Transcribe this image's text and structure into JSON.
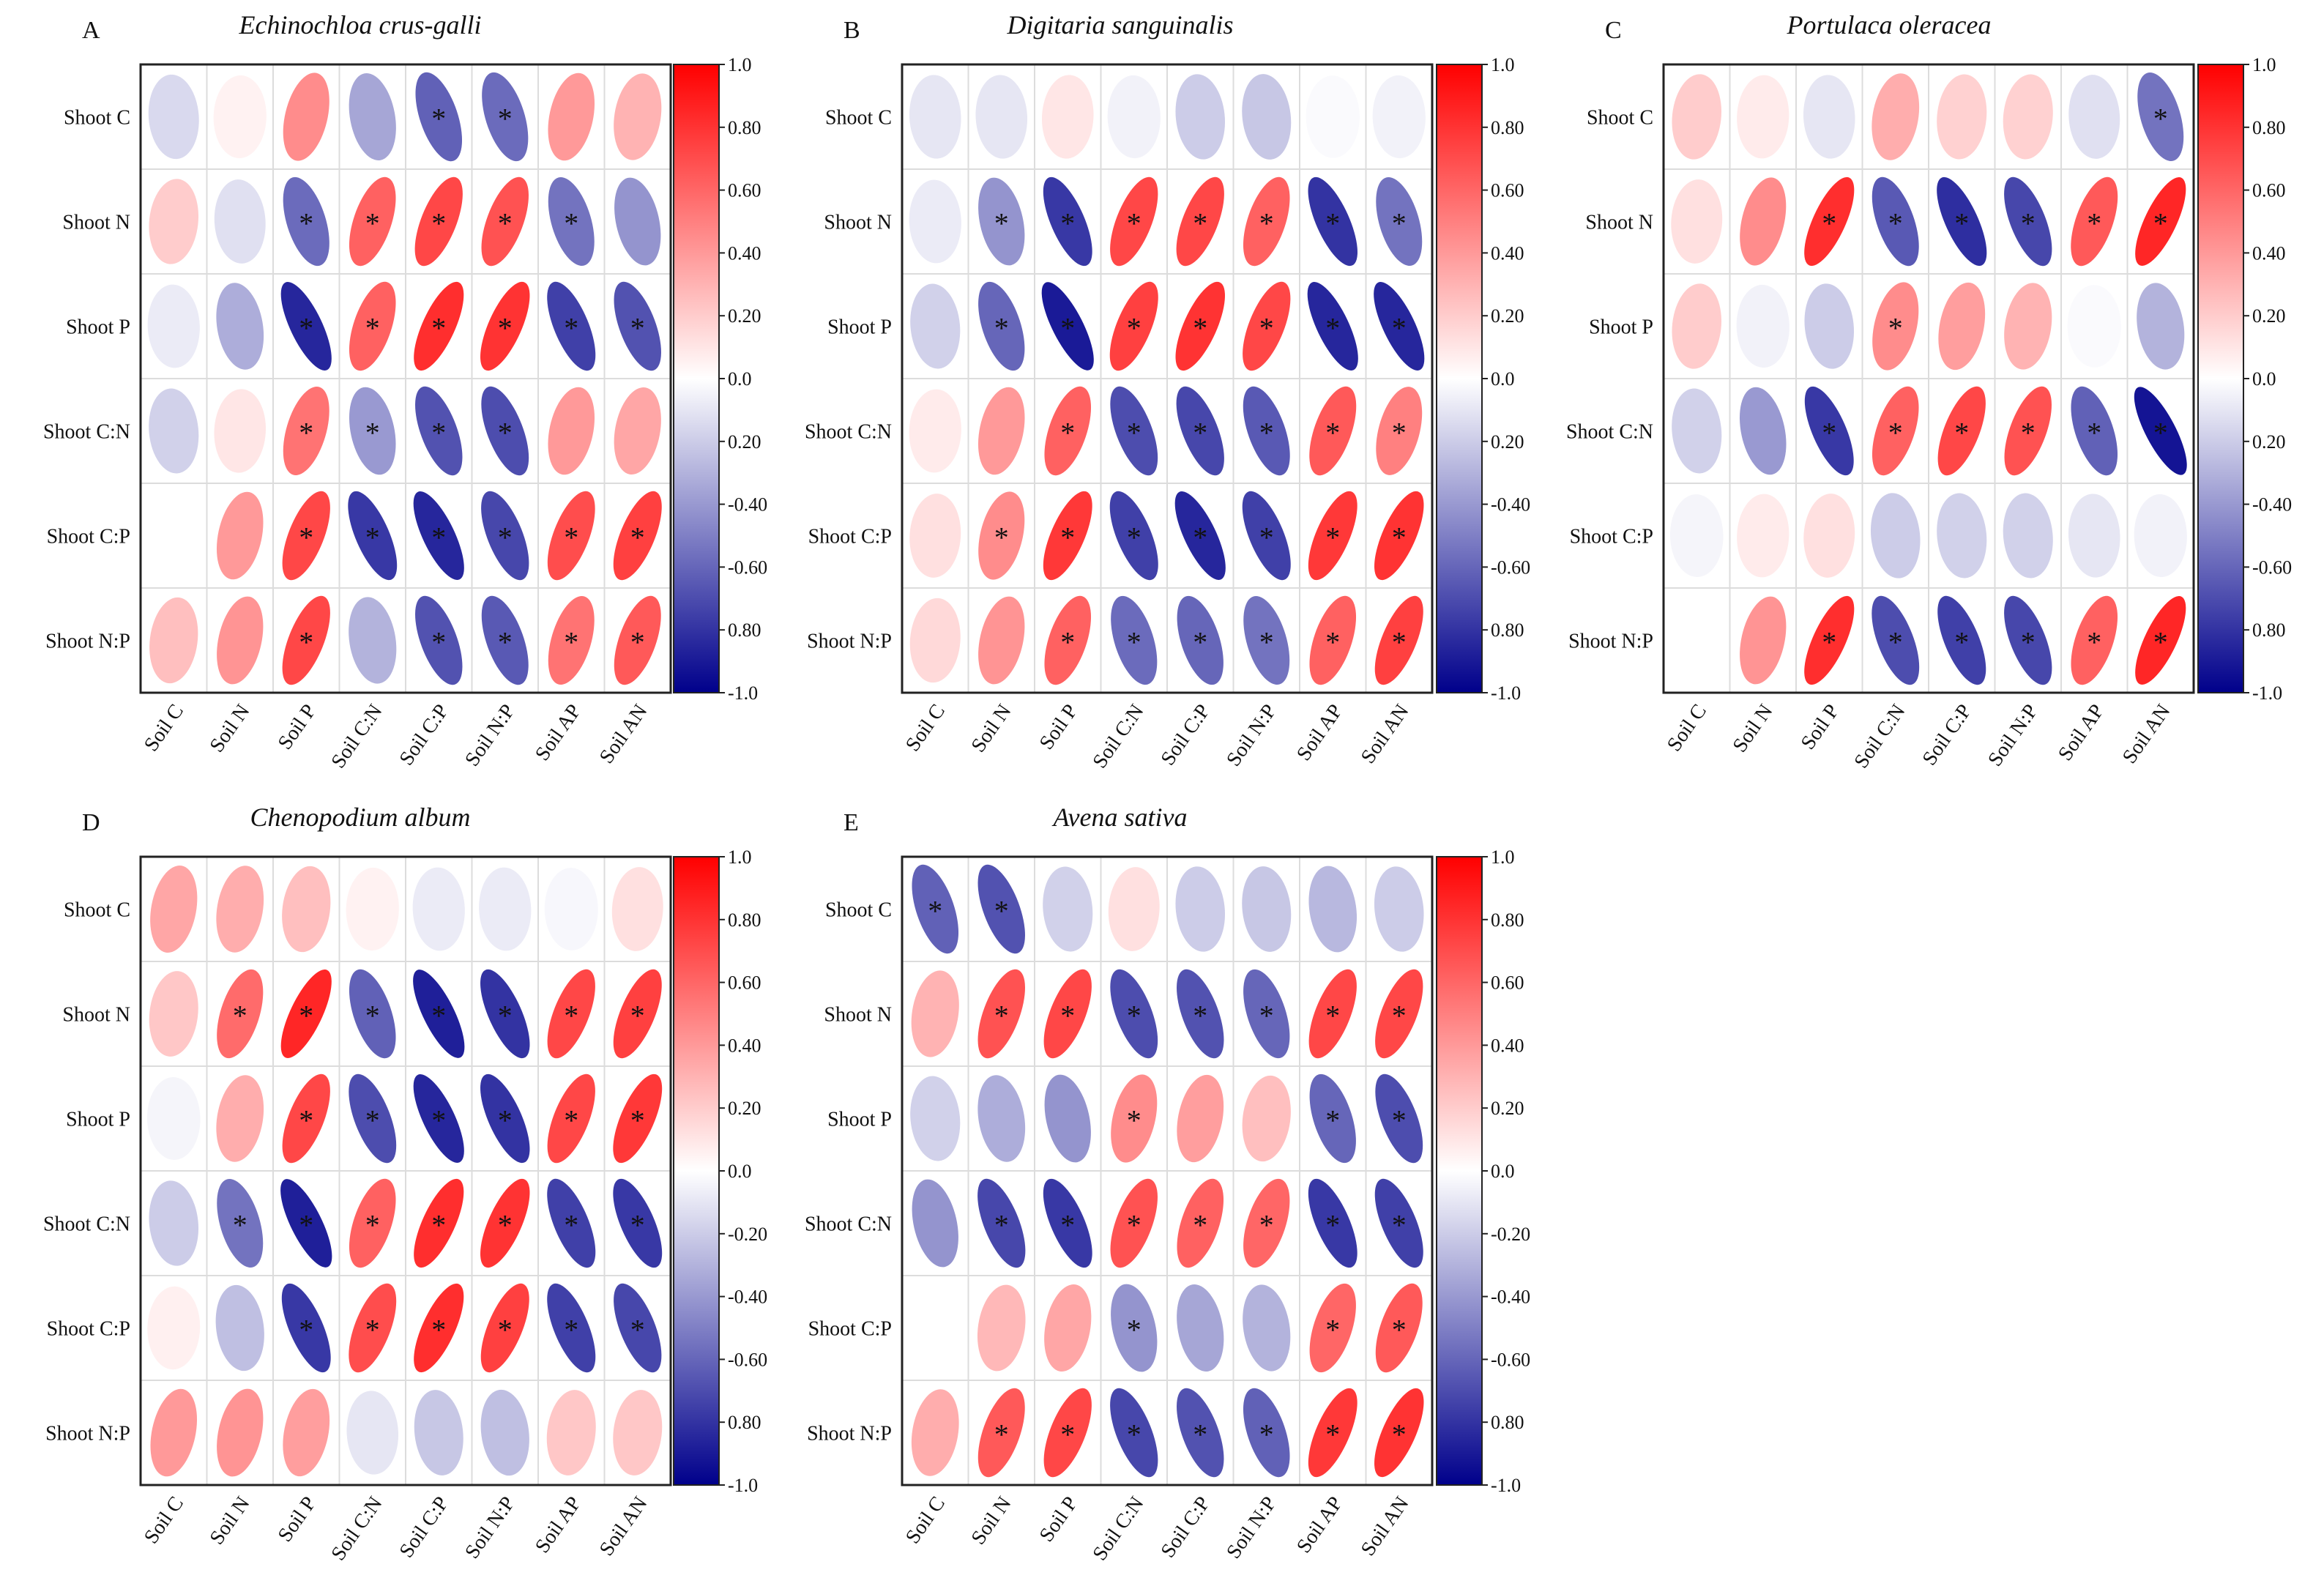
{
  "chart_data": [
    {
      "type": "heatmap",
      "panel": "A",
      "title": "Echinochloa crus-galli",
      "rows": [
        "Shoot C",
        "Shoot N",
        "Shoot P",
        "Shoot C:N",
        "Shoot C:P",
        "Shoot N:P"
      ],
      "cols": [
        "Soil C",
        "Soil N",
        "Soil P",
        "Soil C:N",
        "Soil C:P",
        "Soil N:P",
        "Soil AP",
        "Soil AN"
      ],
      "values": [
        [
          -0.15,
          0.05,
          0.45,
          -0.35,
          -0.62,
          -0.58,
          0.4,
          0.3
        ],
        [
          0.2,
          -0.12,
          -0.58,
          0.62,
          0.72,
          0.68,
          -0.55,
          -0.42
        ],
        [
          -0.08,
          -0.32,
          -0.85,
          0.62,
          0.82,
          0.8,
          -0.75,
          -0.68
        ],
        [
          -0.18,
          0.1,
          0.55,
          -0.4,
          -0.68,
          -0.7,
          0.4,
          0.35
        ],
        [
          0.0,
          0.4,
          0.72,
          -0.78,
          -0.85,
          -0.72,
          0.7,
          0.75
        ],
        [
          0.25,
          0.42,
          0.72,
          -0.3,
          -0.68,
          -0.65,
          0.55,
          0.65
        ]
      ],
      "significant": [
        [
          false,
          false,
          false,
          false,
          true,
          true,
          false,
          false
        ],
        [
          false,
          false,
          true,
          true,
          true,
          true,
          true,
          false
        ],
        [
          false,
          false,
          true,
          true,
          true,
          true,
          true,
          true
        ],
        [
          false,
          false,
          true,
          true,
          true,
          true,
          false,
          false
        ],
        [
          false,
          false,
          true,
          true,
          true,
          true,
          true,
          true
        ],
        [
          false,
          false,
          true,
          false,
          true,
          true,
          true,
          true
        ]
      ],
      "colorbar": {
        "min": -1.0,
        "max": 1.0,
        "tick_labels": [
          "1.0",
          "0.80",
          "0.60",
          "0.40",
          "0.20",
          "0.0",
          "0.20",
          "-0.40",
          "-0.60",
          "0.80",
          "-1.0"
        ]
      }
    },
    {
      "type": "heatmap",
      "panel": "B",
      "title": "Digitaria sanguinalis",
      "rows": [
        "Shoot C",
        "Shoot N",
        "Shoot P",
        "Shoot C:N",
        "Shoot C:P",
        "Shoot N:P"
      ],
      "cols": [
        "Soil C",
        "Soil N",
        "Soil P",
        "Soil C:N",
        "Soil C:P",
        "Soil N:P",
        "Soil AP",
        "Soil AN"
      ],
      "values": [
        [
          -0.1,
          -0.1,
          0.1,
          -0.05,
          -0.2,
          -0.22,
          -0.02,
          -0.05
        ],
        [
          -0.08,
          -0.42,
          -0.78,
          0.72,
          0.72,
          0.62,
          -0.8,
          -0.55
        ],
        [
          -0.18,
          -0.6,
          -0.9,
          0.75,
          0.8,
          0.72,
          -0.85,
          -0.85
        ],
        [
          0.08,
          0.4,
          0.62,
          -0.7,
          -0.72,
          -0.65,
          0.65,
          0.5
        ],
        [
          0.12,
          0.45,
          0.78,
          -0.75,
          -0.85,
          -0.75,
          0.78,
          0.8
        ],
        [
          0.15,
          0.42,
          0.62,
          -0.58,
          -0.6,
          -0.55,
          0.62,
          0.75
        ]
      ],
      "significant": [
        [
          false,
          false,
          false,
          false,
          false,
          false,
          false,
          false
        ],
        [
          false,
          true,
          true,
          true,
          true,
          true,
          true,
          true
        ],
        [
          false,
          true,
          true,
          true,
          true,
          true,
          true,
          true
        ],
        [
          false,
          false,
          true,
          true,
          true,
          true,
          true,
          true
        ],
        [
          false,
          true,
          true,
          true,
          true,
          true,
          true,
          true
        ],
        [
          false,
          false,
          true,
          true,
          true,
          true,
          true,
          true
        ]
      ],
      "colorbar": {
        "min": -1.0,
        "max": 1.0,
        "tick_labels": [
          "1.0",
          "0.80",
          "0.60",
          "0.40",
          "0.20",
          "0.0",
          "0.20",
          "-0.40",
          "-0.60",
          "0.80",
          "-1.0"
        ]
      }
    },
    {
      "type": "heatmap",
      "panel": "C",
      "title": "Portulaca oleracea",
      "rows": [
        "Shoot C",
        "Shoot N",
        "Shoot P",
        "Shoot C:N",
        "Shoot C:P",
        "Shoot N:P"
      ],
      "cols": [
        "Soil C",
        "Soil N",
        "Soil P",
        "Soil C:N",
        "Soil C:P",
        "Soil N:P",
        "Soil AP",
        "Soil AN"
      ],
      "values": [
        [
          0.2,
          0.08,
          -0.1,
          0.32,
          0.18,
          0.18,
          -0.12,
          -0.55
        ],
        [
          0.12,
          0.45,
          0.82,
          -0.65,
          -0.82,
          -0.72,
          0.65,
          0.85
        ],
        [
          0.2,
          -0.05,
          -0.2,
          0.45,
          0.38,
          0.3,
          -0.02,
          -0.3
        ],
        [
          -0.18,
          -0.4,
          -0.78,
          0.62,
          0.72,
          0.68,
          -0.62,
          -0.92
        ],
        [
          -0.04,
          0.08,
          0.12,
          -0.2,
          -0.18,
          -0.18,
          -0.1,
          -0.05
        ],
        [
          0.0,
          0.42,
          0.82,
          -0.7,
          -0.75,
          -0.72,
          0.62,
          0.85
        ]
      ],
      "significant": [
        [
          false,
          false,
          false,
          false,
          false,
          false,
          false,
          true
        ],
        [
          false,
          false,
          true,
          true,
          true,
          true,
          true,
          true
        ],
        [
          false,
          false,
          false,
          true,
          false,
          false,
          false,
          false
        ],
        [
          false,
          false,
          true,
          true,
          true,
          true,
          true,
          true
        ],
        [
          false,
          false,
          false,
          false,
          false,
          false,
          false,
          false
        ],
        [
          false,
          false,
          true,
          true,
          true,
          true,
          true,
          true
        ]
      ],
      "colorbar": {
        "min": -1.0,
        "max": 1.0,
        "tick_labels": [
          "1.0",
          "0.80",
          "0.60",
          "0.40",
          "0.20",
          "0.0",
          "0.20",
          "-0.40",
          "-0.60",
          "0.80",
          "-1.0"
        ]
      }
    },
    {
      "type": "heatmap",
      "panel": "D",
      "title": "Chenopodium album",
      "rows": [
        "Shoot C",
        "Shoot N",
        "Shoot P",
        "Shoot C:N",
        "Shoot C:P",
        "Shoot N:P"
      ],
      "cols": [
        "Soil C",
        "Soil N",
        "Soil P",
        "Soil C:N",
        "Soil C:P",
        "Soil N:P",
        "Soil AP",
        "Soil AN"
      ],
      "values": [
        [
          0.35,
          0.32,
          0.25,
          0.05,
          -0.08,
          -0.08,
          -0.03,
          0.12
        ],
        [
          0.22,
          0.58,
          0.85,
          -0.62,
          -0.88,
          -0.8,
          0.72,
          0.75
        ],
        [
          -0.04,
          0.32,
          0.72,
          -0.7,
          -0.85,
          -0.8,
          0.72,
          0.78
        ],
        [
          -0.2,
          -0.55,
          -0.88,
          0.62,
          0.82,
          0.8,
          -0.75,
          -0.78
        ],
        [
          0.06,
          -0.25,
          -0.78,
          0.7,
          0.82,
          0.75,
          -0.75,
          -0.72
        ],
        [
          0.4,
          0.42,
          0.38,
          -0.1,
          -0.22,
          -0.25,
          0.22,
          0.22
        ]
      ],
      "significant": [
        [
          false,
          false,
          false,
          false,
          false,
          false,
          false,
          false
        ],
        [
          false,
          true,
          true,
          true,
          true,
          true,
          true,
          true
        ],
        [
          false,
          false,
          true,
          true,
          true,
          true,
          true,
          true
        ],
        [
          false,
          true,
          true,
          true,
          true,
          true,
          true,
          true
        ],
        [
          false,
          false,
          true,
          true,
          true,
          true,
          true,
          true
        ],
        [
          false,
          false,
          false,
          false,
          false,
          false,
          false,
          false
        ]
      ],
      "colorbar": {
        "min": -1.0,
        "max": 1.0,
        "tick_labels": [
          "1.0",
          "0.80",
          "0.60",
          "0.40",
          "0.20",
          "0.0",
          "-0.20",
          "-0.40",
          "-0.60",
          "0.80",
          "-1.0"
        ]
      }
    },
    {
      "type": "heatmap",
      "panel": "E",
      "title": "Avena sativa",
      "rows": [
        "Shoot C",
        "Shoot N",
        "Shoot P",
        "Shoot C:N",
        "Shoot C:P",
        "Shoot N:P"
      ],
      "cols": [
        "Soil C",
        "Soil N",
        "Soil P",
        "Soil C:N",
        "Soil C:P",
        "Soil N:P",
        "Soil AP",
        "Soil AN"
      ],
      "values": [
        [
          -0.62,
          -0.68,
          -0.18,
          0.12,
          -0.2,
          -0.22,
          -0.28,
          -0.2
        ],
        [
          0.3,
          0.68,
          0.72,
          -0.7,
          -0.68,
          -0.6,
          0.72,
          0.72
        ],
        [
          -0.18,
          -0.32,
          -0.42,
          0.45,
          0.38,
          0.25,
          -0.6,
          -0.7
        ],
        [
          -0.42,
          -0.72,
          -0.78,
          0.68,
          0.62,
          0.6,
          -0.78,
          -0.75
        ],
        [
          0.0,
          0.28,
          0.35,
          -0.42,
          -0.35,
          -0.3,
          0.6,
          0.65
        ],
        [
          0.32,
          0.65,
          0.72,
          -0.72,
          -0.68,
          -0.62,
          0.78,
          0.8
        ]
      ],
      "significant": [
        [
          true,
          true,
          false,
          false,
          false,
          false,
          false,
          false
        ],
        [
          false,
          true,
          true,
          true,
          true,
          true,
          true,
          true
        ],
        [
          false,
          false,
          false,
          true,
          false,
          false,
          true,
          true
        ],
        [
          false,
          true,
          true,
          true,
          true,
          true,
          true,
          true
        ],
        [
          false,
          false,
          false,
          true,
          false,
          false,
          true,
          true
        ],
        [
          false,
          true,
          true,
          true,
          true,
          true,
          true,
          true
        ]
      ],
      "colorbar": {
        "min": -1.0,
        "max": 1.0,
        "tick_labels": [
          "1.0",
          "0.80",
          "0.60",
          "0.40",
          "0.20",
          "0.0",
          "-0.20",
          "-0.40",
          "-0.60",
          "0.80",
          "-1.0"
        ]
      }
    }
  ],
  "significance_marker": "*",
  "colors": {
    "positive": "#ff0000",
    "neutral": "#ffffff",
    "negative": "#00008b"
  }
}
